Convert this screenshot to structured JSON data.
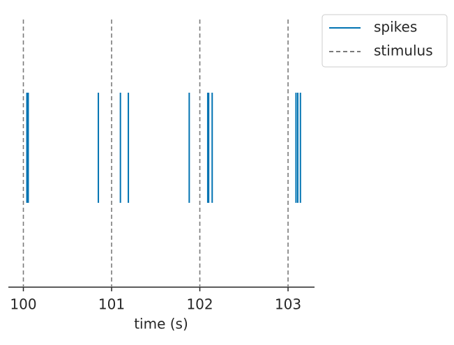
{
  "chart_data": {
    "type": "eventplot",
    "xlabel": "time (s)",
    "xlim": [
      99.83,
      103.3
    ],
    "xticks": [
      100,
      101,
      102,
      103
    ],
    "legend": "outside upper right",
    "series": [
      {
        "name": "spikes",
        "color": "#0173b2",
        "linestyle": "solid",
        "values": [
          100.04,
          100.055,
          100.85,
          101.1,
          101.19,
          101.88,
          102.09,
          102.1,
          102.14,
          103.09,
          103.11,
          103.14
        ]
      },
      {
        "name": "stimulus",
        "color": "#7a7a7a",
        "linestyle": "dashed",
        "values": [
          100,
          101,
          102,
          103
        ]
      }
    ]
  }
}
